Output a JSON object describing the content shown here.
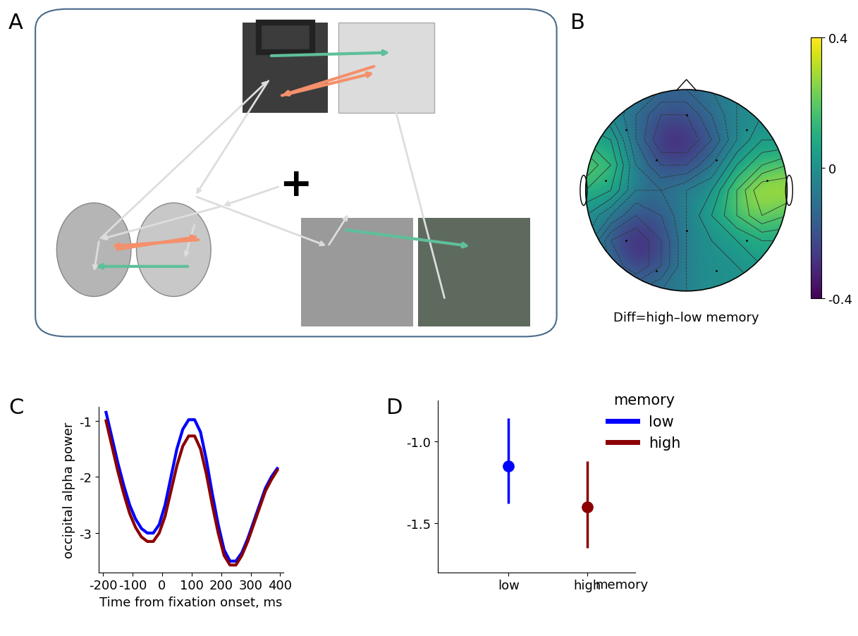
{
  "chart_data": [
    {
      "panel": "A",
      "type": "diagram",
      "annotations": [
        "+"
      ]
    },
    {
      "panel": "B",
      "type": "heatmap",
      "xlabel": "Diff=high–low memory",
      "cells": [
        [
          0,
          -0.05,
          -0.1,
          -0.15,
          -0.15,
          -0.1,
          -0.05,
          0,
          0
        ],
        [
          0,
          -0.05,
          -0.15,
          -0.25,
          -0.25,
          -0.15,
          -0.05,
          0,
          0
        ],
        [
          0.1,
          0.05,
          -0.15,
          -0.3,
          -0.3,
          -0.2,
          -0.05,
          0.05,
          0.05
        ],
        [
          0.2,
          0.1,
          -0.1,
          -0.2,
          -0.2,
          -0.1,
          0.05,
          0.15,
          0.2
        ],
        [
          0.1,
          0.05,
          -0.1,
          -0.1,
          -0.05,
          0,
          0.15,
          0.3,
          0.3
        ],
        [
          0,
          -0.1,
          -0.2,
          -0.15,
          -0.05,
          0.05,
          0.15,
          0.25,
          0.2
        ],
        [
          -0.05,
          -0.25,
          -0.3,
          -0.2,
          -0.05,
          0,
          0.05,
          0.1,
          0.1
        ],
        [
          -0.05,
          -0.2,
          -0.3,
          -0.2,
          -0.05,
          0,
          0,
          0.05,
          0.05
        ],
        [
          0,
          -0.1,
          -0.15,
          -0.1,
          -0.05,
          0,
          0,
          0,
          0
        ]
      ],
      "color_range": [
        -0.4,
        0.4
      ],
      "color_ticks": [
        -0.4,
        0,
        0.4
      ]
    },
    {
      "panel": "C",
      "type": "line",
      "xlabel": "Time from fixation onset, ms",
      "ylabel": "occipital alpha power",
      "x": [
        -190,
        -170,
        -150,
        -130,
        -110,
        -90,
        -70,
        -50,
        -30,
        -10,
        10,
        30,
        50,
        70,
        90,
        110,
        130,
        150,
        170,
        190,
        210,
        230,
        250,
        270,
        290,
        310,
        330,
        350,
        370,
        390
      ],
      "series": [
        {
          "name": "low",
          "color": "#0000ff",
          "values": [
            -0.85,
            -1.3,
            -1.75,
            -2.15,
            -2.5,
            -2.75,
            -2.92,
            -3.0,
            -3.0,
            -2.85,
            -2.5,
            -2.0,
            -1.5,
            -1.15,
            -0.98,
            -0.98,
            -1.2,
            -1.7,
            -2.3,
            -2.85,
            -3.3,
            -3.5,
            -3.5,
            -3.35,
            -3.1,
            -2.8,
            -2.5,
            -2.2,
            -2.0,
            -1.85
          ]
        },
        {
          "name": "high",
          "color": "#8b0000",
          "values": [
            -1.0,
            -1.45,
            -1.9,
            -2.3,
            -2.65,
            -2.9,
            -3.07,
            -3.15,
            -3.15,
            -3.0,
            -2.7,
            -2.25,
            -1.8,
            -1.45,
            -1.27,
            -1.27,
            -1.5,
            -1.95,
            -2.5,
            -3.0,
            -3.4,
            -3.57,
            -3.57,
            -3.4,
            -3.15,
            -2.85,
            -2.55,
            -2.25,
            -2.05,
            -1.88
          ]
        }
      ],
      "xlim": [
        -215,
        410
      ],
      "xticks": [
        -200,
        -100,
        0,
        100,
        200,
        300,
        400
      ],
      "ylim": [
        -3.7,
        -0.75
      ],
      "yticks": [
        -3,
        -2,
        -1
      ]
    },
    {
      "panel": "D",
      "type": "scatter",
      "xlabel": "memory",
      "legend_title": "memory",
      "categories": [
        "low",
        "high"
      ],
      "series": [
        {
          "name": "low",
          "color": "#0000ff",
          "values": [
            -1.15,
            null
          ],
          "error_bounds": [
            [
              -1.38,
              -0.86
            ],
            null
          ]
        },
        {
          "name": "high",
          "color": "#8b0000",
          "values": [
            null,
            -1.4
          ],
          "error_bounds": [
            null,
            [
              -1.65,
              -1.12
            ]
          ]
        }
      ],
      "ylim": [
        -1.8,
        -0.75
      ],
      "yticks": [
        -1.5,
        -1.0
      ],
      "legend": "upper right",
      "marker": "o"
    }
  ]
}
